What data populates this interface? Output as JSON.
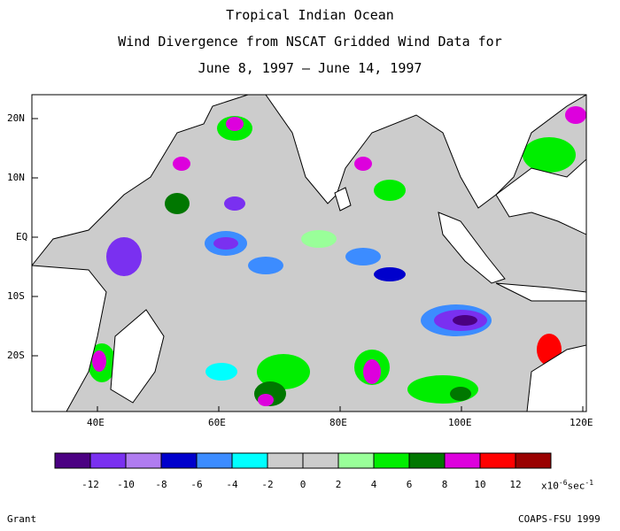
{
  "title": {
    "line1": "Tropical Indian Ocean",
    "line2": "Wind Divergence from NSCAT Gridded Wind Data for",
    "line3": "June 8, 1997 – June 14, 1997"
  },
  "map": {
    "lon_range": [
      30,
      122
    ],
    "lat_range": [
      -29,
      24
    ],
    "lat_ticks": [
      "20N",
      "10N",
      "EQ",
      "10S",
      "20S"
    ],
    "lon_ticks": [
      "40E",
      "60E",
      "80E",
      "100E",
      "120E"
    ]
  },
  "colorbar": {
    "colors": [
      "#4b0082",
      "#7a30f0",
      "#b07cf0",
      "#0000cc",
      "#3c8cff",
      "#00ffff",
      "#cccccc",
      "#cccccc",
      "#99ff99",
      "#00ee00",
      "#007700",
      "#dd00dd",
      "#ff0000",
      "#990000"
    ],
    "labels": [
      "-12",
      "-10",
      "-8",
      "-6",
      "-4",
      "-2",
      "0",
      "2",
      "4",
      "6",
      "8",
      "10",
      "12"
    ],
    "unit_prefix": "x10",
    "unit_exp": "-6",
    "unit_mid": "sec",
    "unit_exp2": "-1"
  },
  "credits": {
    "left": "Grant",
    "right": "COAPS-FSU 1999"
  }
}
